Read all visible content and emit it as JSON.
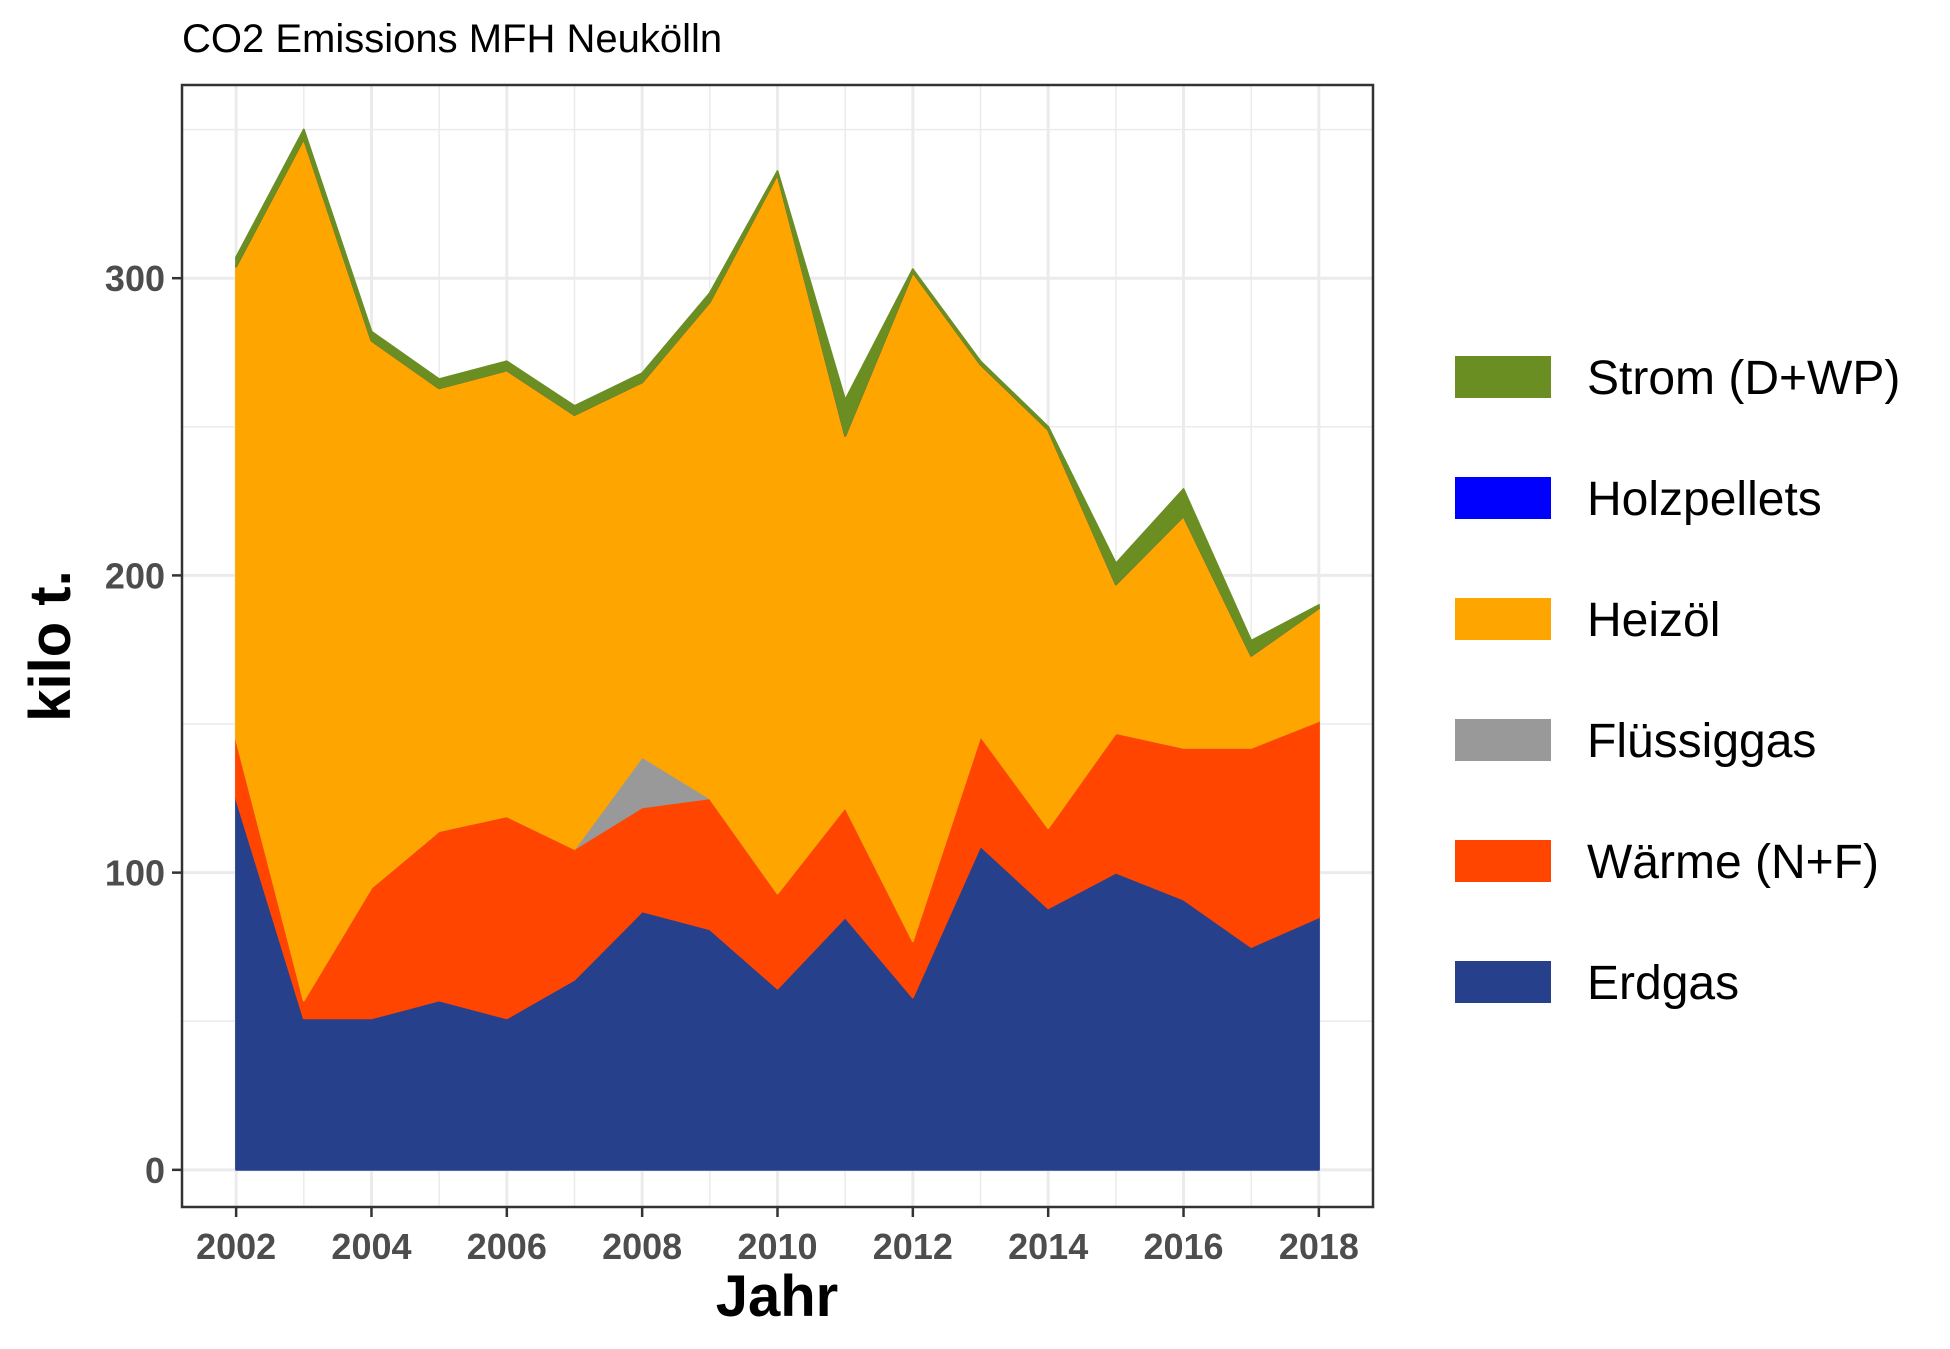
{
  "chart_data": {
    "type": "area",
    "stacked": true,
    "title": "CO2 Emissions MFH Neukölln",
    "xlabel": "Jahr",
    "ylabel": "kilo t.",
    "x": [
      2002,
      2003,
      2004,
      2005,
      2006,
      2007,
      2008,
      2009,
      2010,
      2011,
      2012,
      2013,
      2014,
      2015,
      2016,
      2017,
      2018
    ],
    "x_ticks": [
      2002,
      2004,
      2006,
      2008,
      2010,
      2012,
      2014,
      2016,
      2018
    ],
    "y_ticks": [
      0,
      100,
      200,
      300
    ],
    "xlim": [
      2001.2,
      2018.8
    ],
    "ylim": [
      -12.5,
      365
    ],
    "grid": true,
    "legend_position": "right",
    "series": [
      {
        "name": "Erdgas",
        "color": "#27408B",
        "values": [
          125,
          51,
          51,
          57,
          51,
          64,
          87,
          81,
          61,
          85,
          58,
          109,
          88,
          100,
          91,
          75,
          85
        ]
      },
      {
        "name": "Wärme (N+F)",
        "color": "#FF4500",
        "values": [
          20,
          6,
          44,
          57,
          68,
          44,
          35,
          44,
          32,
          37,
          19,
          37,
          27,
          47,
          51,
          67,
          66
        ]
      },
      {
        "name": "Flüssiggas",
        "color": "#999999",
        "values": [
          0,
          0,
          0,
          0,
          0,
          0,
          17,
          0,
          0,
          0,
          0,
          0,
          0,
          0,
          0,
          0,
          0
        ]
      },
      {
        "name": "Heizöl",
        "color": "#FFA500",
        "values": [
          159,
          290,
          184,
          149,
          150,
          146,
          126,
          167,
          242,
          125,
          225,
          125,
          134,
          50,
          78,
          31,
          38
        ]
      },
      {
        "name": "Holzpellets",
        "color": "#0000FF",
        "values": [
          0,
          0,
          0,
          0,
          0,
          0,
          0,
          0,
          0,
          0,
          0,
          0,
          0,
          0,
          0,
          0,
          0
        ]
      },
      {
        "name": "Strom (D+WP)",
        "color": "#6B8E23",
        "values": [
          3,
          3,
          3,
          3,
          3,
          3,
          3,
          3,
          1,
          12,
          1,
          1,
          1,
          7,
          9,
          5,
          1
        ]
      }
    ],
    "legend_order": [
      "Strom (D+WP)",
      "Holzpellets",
      "Heizöl",
      "Flüssiggas",
      "Wärme (N+F)",
      "Erdgas"
    ]
  }
}
